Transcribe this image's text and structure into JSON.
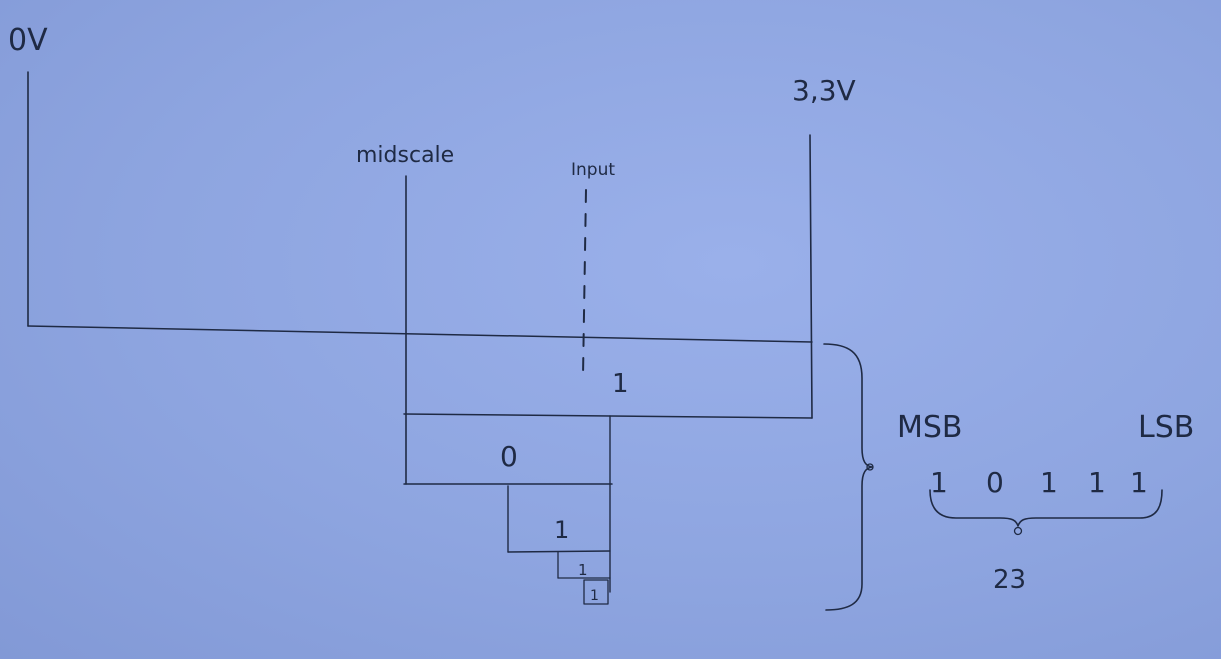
{
  "labels": {
    "zero_volt": "0V",
    "full_volt": "3,3V",
    "midscale": "midscale",
    "input": "Input",
    "msb": "MSB",
    "lsb": "LSB",
    "result": "23"
  },
  "bit_boxes": [
    "1",
    "0",
    "1",
    "1",
    "1"
  ],
  "bit_sequence": [
    "1",
    "0",
    "1",
    "1",
    "1"
  ]
}
